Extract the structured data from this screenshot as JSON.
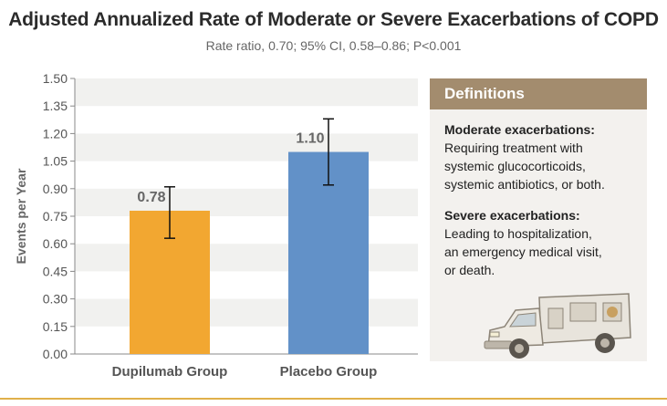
{
  "chart_data": {
    "type": "bar",
    "title": "Adjusted Annualized Rate of Moderate or Severe Exacerbations of COPD",
    "subtitle": "Rate ratio, 0.70; 95% CI, 0.58–0.86; P<0.001",
    "ylabel": "Events per Year",
    "xlabel": "",
    "ylim": [
      0,
      1.5
    ],
    "yticks": [
      "0.00",
      "0.15",
      "0.30",
      "0.45",
      "0.60",
      "0.75",
      "0.90",
      "1.05",
      "1.20",
      "1.35",
      "1.50"
    ],
    "categories": [
      "Dupilumab Group",
      "Placebo Group"
    ],
    "values": [
      0.78,
      1.1
    ],
    "value_labels": [
      "0.78",
      "1.10"
    ],
    "error_low": [
      0.63,
      0.92
    ],
    "error_high": [
      0.91,
      1.28
    ],
    "colors": [
      "#f2a731",
      "#6291c8"
    ]
  },
  "definitions": {
    "header": "Definitions",
    "moderate_title": "Moderate exacerbations:",
    "moderate_text": "Requiring treatment with\nsystemic glucocorticoids,\nsystemic antibiotics, or both.",
    "severe_title": "Severe exacerbations:",
    "severe_text": "Leading to hospitalization,\nan emergency medical visit,\nor death."
  },
  "colors": {
    "panel_header": "#a38c6e",
    "panel_bg": "#f3f1ee",
    "accent_rule": "#e0b04a"
  }
}
